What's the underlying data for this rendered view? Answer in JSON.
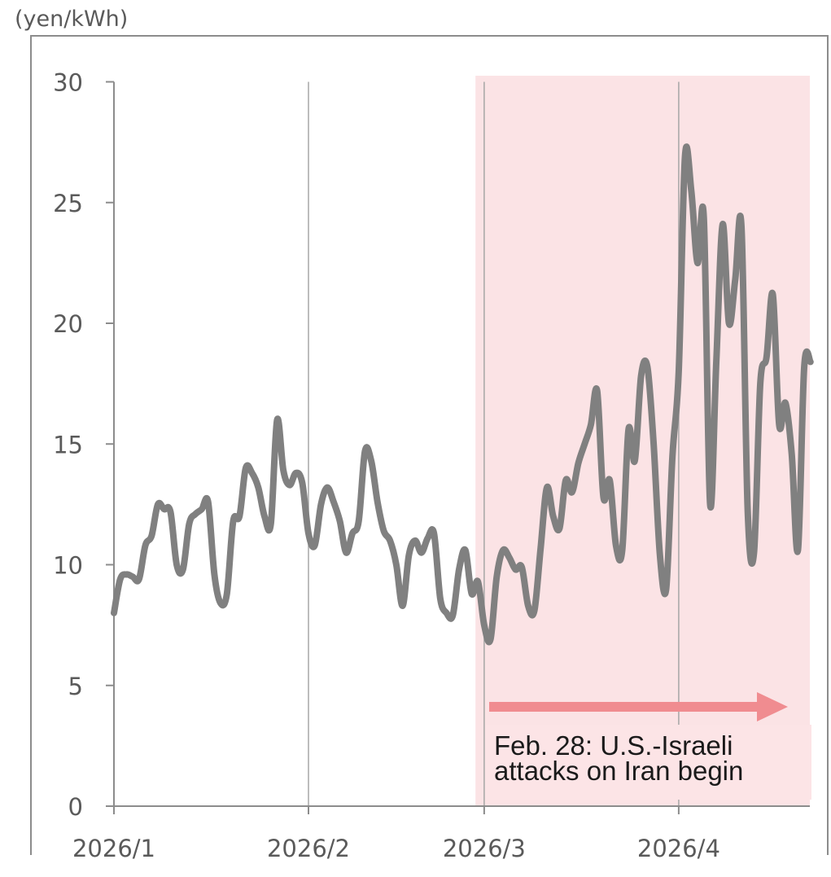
{
  "chart_data": {
    "type": "line",
    "unit_label": "(yen/kWh)",
    "xlabel": "",
    "ylabel": "",
    "ylim": [
      0,
      30
    ],
    "y_ticks": [
      0,
      5,
      10,
      15,
      20,
      25,
      30
    ],
    "x_ticks": [
      "2026/1",
      "2026/2",
      "2026/3",
      "2026/4"
    ],
    "x_range_days": [
      0,
      111
    ],
    "grid": "vertical lines at month starts",
    "line_color": "#808080",
    "highlight": {
      "from_date": "2026/2/28",
      "color": "#fbe3e5",
      "arrow_color": "#f08c90",
      "annotation_lines": [
        "Feb. 28: U.S.-Israeli",
        "attacks on Iran begin"
      ]
    },
    "series": [
      {
        "date_offset_days": [
          0,
          1,
          2,
          3,
          4,
          5,
          6,
          7,
          8,
          9,
          10,
          11,
          12,
          13,
          14,
          15,
          16,
          17,
          18,
          19,
          20,
          21,
          22,
          23,
          24,
          25,
          26,
          27,
          28,
          29,
          30,
          31,
          32,
          33,
          34,
          35,
          36,
          37,
          38,
          39,
          40,
          41,
          42,
          43,
          44,
          45,
          46,
          47,
          48,
          49,
          50,
          51,
          52,
          53,
          54,
          55,
          56,
          57,
          58,
          59,
          60,
          61,
          62,
          63,
          64,
          65,
          66,
          67,
          68,
          69,
          70,
          71,
          72,
          73,
          74,
          75,
          76,
          77,
          78,
          79,
          80,
          81,
          82,
          83,
          84,
          85,
          86,
          87,
          88,
          89,
          90,
          91,
          92,
          93,
          94,
          95,
          96,
          97,
          98,
          99,
          100,
          101,
          102,
          103,
          104,
          105,
          106,
          107,
          108,
          109,
          110,
          111
        ],
        "values": [
          8.0,
          9.4,
          9.6,
          9.5,
          9.4,
          10.8,
          11.2,
          12.5,
          12.3,
          12.2,
          10.0,
          9.8,
          11.7,
          12.1,
          12.3,
          12.6,
          9.6,
          8.4,
          8.8,
          11.8,
          12.0,
          14.0,
          13.8,
          13.2,
          12.0,
          11.7,
          16.0,
          13.9,
          13.3,
          13.8,
          13.4,
          11.3,
          10.8,
          12.5,
          13.2,
          12.6,
          11.8,
          10.5,
          11.3,
          11.8,
          14.7,
          14.3,
          12.6,
          11.4,
          11.0,
          10.0,
          8.3,
          10.4,
          11.0,
          10.5,
          11.1,
          11.3,
          8.6,
          8.0,
          7.9,
          9.8,
          10.6,
          8.8,
          9.3,
          7.5,
          6.9,
          9.5,
          10.6,
          10.3,
          9.8,
          9.9,
          8.3,
          8.1,
          10.7,
          13.2,
          12.0,
          11.5,
          13.5,
          13.0,
          14.2,
          15.0,
          15.8,
          17.2,
          12.8,
          13.5,
          10.8,
          10.6,
          15.6,
          14.3,
          17.8,
          18.2,
          15.0,
          10.4,
          9.0,
          14.5,
          18.0,
          26.9,
          25.5,
          22.5,
          24.4,
          12.5,
          18.5,
          24.1,
          20.0,
          21.8,
          24.0,
          12.2,
          10.5,
          17.5,
          18.6,
          21.2,
          15.8,
          16.7,
          14.6,
          10.6,
          18.2,
          18.4
        ]
      }
    ]
  }
}
